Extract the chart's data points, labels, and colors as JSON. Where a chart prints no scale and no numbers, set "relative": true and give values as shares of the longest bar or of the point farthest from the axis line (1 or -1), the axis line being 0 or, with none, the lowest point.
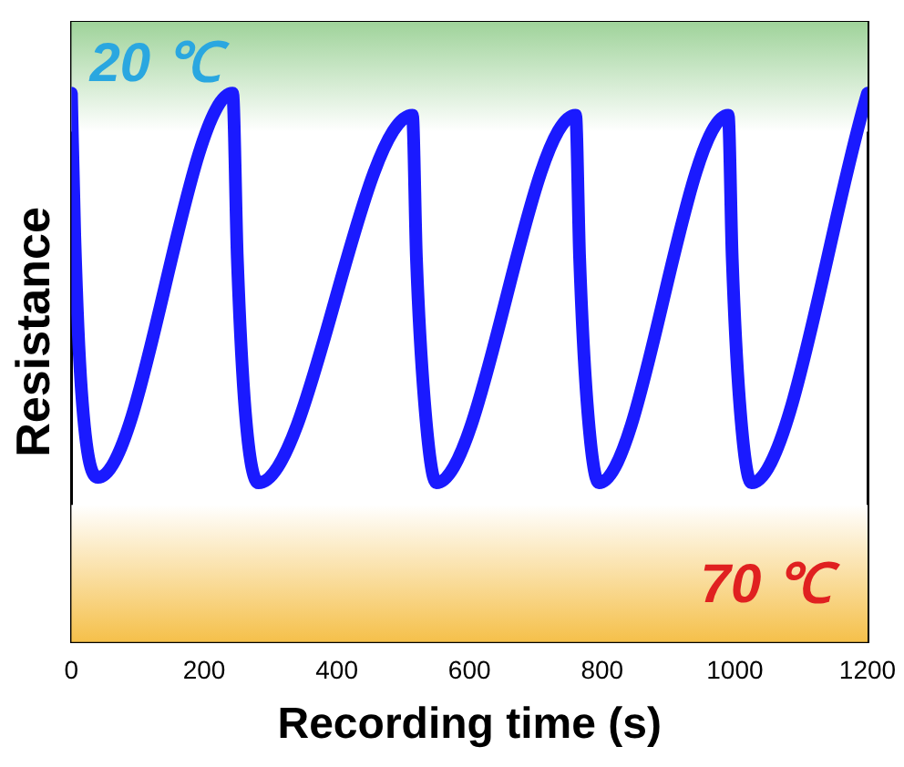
{
  "chart_data": {
    "type": "line",
    "xlabel": "Recording time (s)",
    "ylabel": "Resistance",
    "relative": true,
    "tick_labels": "x",
    "legend": false,
    "grid": false,
    "marker": "none",
    "line_style": "solid",
    "xlim": [
      0,
      1200
    ],
    "xticks": [
      0,
      200,
      400,
      600,
      800,
      1000,
      1200
    ],
    "series": [
      {
        "color": "#1a1aff",
        "x": [
          0,
          5,
          15,
          40,
          243,
          250,
          262,
          282,
          514,
          520,
          532,
          550,
          760,
          766,
          777,
          795,
          990,
          996,
          1007,
          1025,
          1200
        ],
        "values": [
          1.0,
          0.74,
          0.46,
          0.3,
          1.0,
          0.7,
          0.42,
          0.29,
          0.96,
          0.7,
          0.44,
          0.29,
          0.96,
          0.7,
          0.44,
          0.29,
          0.96,
          0.7,
          0.44,
          0.29,
          1.0
        ]
      }
    ],
    "bands": [
      {
        "axis": "y",
        "from": 0.93,
        "to": 1.13,
        "label": "20 ℃",
        "color": "#9fd39a"
      },
      {
        "axis": "y",
        "from": 0,
        "to": 0.25,
        "label": "70 ℃",
        "color": "#f5c04a"
      }
    ]
  }
}
